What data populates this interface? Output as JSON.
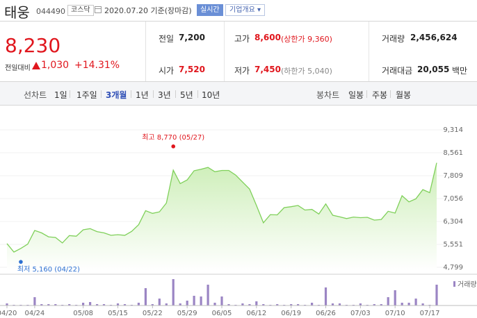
{
  "header": {
    "name": "태웅",
    "code": "044490",
    "market": "코스닥",
    "date_text": "2020.07.20  기준(장마감)",
    "realtime_btn": "실시간",
    "overview_btn": "기업개요 ▾"
  },
  "summary": {
    "price": "8,230",
    "change_label": "전일대비",
    "change_value": "1,030",
    "change_pct": "+14.31%",
    "prev_close_label": "전일",
    "prev_close": "7,200",
    "high_label": "고가",
    "high": "8,600",
    "upper_limit": "(상한가 9,360)",
    "volume_label": "거래량",
    "volume": "2,456,624",
    "open_label": "시가",
    "open": "7,520",
    "low_label": "저가",
    "low": "7,450",
    "lower_limit": "(하한가 5,040)",
    "amount_label": "거래대금",
    "amount": "20,055",
    "amount_unit": "백만"
  },
  "tabs": {
    "line_label": "선차트",
    "periods": [
      "1일",
      "1주일",
      "3개월",
      "1년",
      "3년",
      "5년",
      "10년"
    ],
    "active_index": 2,
    "candle_label": "봉차트",
    "candles": [
      "일봉",
      "주봉",
      "월봉"
    ]
  },
  "colors": {
    "up": "#e0161d",
    "line": "#7fd05a",
    "area_top": "#cdeeb8",
    "volume": "#9b85c4",
    "low_dot": "#2c6fd1",
    "high_dot": "#e0161d"
  },
  "chart_data": {
    "type": "area",
    "ylim": [
      4799,
      9314
    ],
    "yticks": [
      "9,314",
      "8,561",
      "7,809",
      "7,056",
      "6,304",
      "5,551",
      "4,799"
    ],
    "xticks": [
      "04/20",
      "04/24",
      "05/08",
      "05/15",
      "05/22",
      "05/29",
      "06/05",
      "06/12",
      "06/19",
      "06/26",
      "07/03",
      "07/10",
      "07/17"
    ],
    "dates": [
      "04/20",
      "04/21",
      "04/22",
      "04/23",
      "04/24",
      "04/27",
      "04/28",
      "04/29",
      "05/04",
      "05/06",
      "05/07",
      "05/08",
      "05/11",
      "05/12",
      "05/13",
      "05/14",
      "05/15",
      "05/18",
      "05/19",
      "05/20",
      "05/21",
      "05/22",
      "05/25",
      "05/26",
      "05/27",
      "05/28",
      "05/29",
      "06/01",
      "06/02",
      "06/03",
      "06/04",
      "06/05",
      "06/08",
      "06/09",
      "06/10",
      "06/11",
      "06/12",
      "06/15",
      "06/16",
      "06/17",
      "06/18",
      "06/19",
      "06/22",
      "06/23",
      "06/24",
      "06/25",
      "06/26",
      "06/29",
      "06/30",
      "07/01",
      "07/02",
      "07/03",
      "07/06",
      "07/07",
      "07/08",
      "07/09",
      "07/10",
      "07/13",
      "07/14",
      "07/15",
      "07/16",
      "07/17",
      "07/20"
    ],
    "close": [
      5580,
      5300,
      5420,
      5560,
      6010,
      5930,
      5800,
      5780,
      5600,
      5840,
      5820,
      6030,
      6070,
      5970,
      5930,
      5850,
      5870,
      5850,
      5980,
      6200,
      6660,
      6570,
      6620,
      6910,
      7990,
      7550,
      7670,
      7970,
      8020,
      8080,
      7940,
      7980,
      7980,
      7830,
      7600,
      7370,
      6830,
      6260,
      6530,
      6520,
      6760,
      6790,
      6830,
      6680,
      6700,
      6550,
      6880,
      6510,
      6460,
      6400,
      6450,
      6430,
      6440,
      6350,
      6370,
      6640,
      6580,
      7150,
      6950,
      7050,
      7350,
      7250,
      8230
    ],
    "volume": [
      3,
      1,
      1,
      1,
      12,
      2,
      2,
      2,
      1,
      2,
      1,
      4,
      5,
      2,
      2,
      1,
      3,
      2,
      1,
      4,
      25,
      2,
      10,
      3,
      38,
      3,
      7,
      14,
      13,
      30,
      4,
      13,
      2,
      1,
      3,
      2,
      6,
      2,
      1,
      2,
      1,
      2,
      2,
      1,
      4,
      1,
      26,
      3,
      3,
      1,
      1,
      3,
      1,
      2,
      2,
      12,
      22,
      4,
      4,
      10,
      3,
      1,
      30
    ],
    "volume_label": "거래량",
    "high_annotation": "최고 8,770 (05/27)",
    "low_annotation": "최저 5,160 (04/22)",
    "high_value": 8770,
    "low_value": 5160,
    "high_index": 24,
    "low_index": 2
  }
}
